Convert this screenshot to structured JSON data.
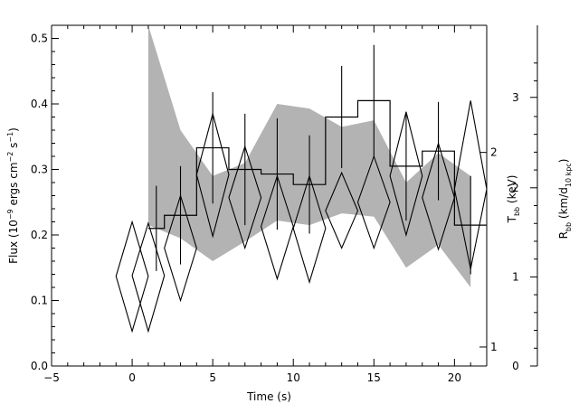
{
  "chart_data": {
    "type": "line",
    "xlabel": "Time (s)",
    "ylabel": "Flux (10^-9 ergs cm^-2 s^-1)",
    "xlim": [
      -5,
      22
    ],
    "ylim": [
      0,
      0.52
    ],
    "xticks": [
      -5,
      0,
      5,
      10,
      15,
      20
    ],
    "yticks": [
      0.0,
      0.1,
      0.2,
      0.3,
      0.4,
      0.5
    ],
    "right_axes": [
      {
        "label": "T_bb (keV)",
        "ticks": [
          {
            "label": "1",
            "flux": 0.029
          },
          {
            "label": "2",
            "flux": 0.326
          }
        ]
      },
      {
        "label": "R_bb (km/d_10 kpc)",
        "ticks": [
          {
            "label": "0",
            "flux": 0.0
          },
          {
            "label": "1",
            "flux": 0.136
          },
          {
            "label": "2",
            "flux": 0.272
          },
          {
            "label": "3",
            "flux": 0.41
          }
        ]
      }
    ],
    "series": [
      {
        "style": "histogram-step",
        "bins": [
          {
            "x0": 1,
            "x1": 2,
            "y": 0.21,
            "err": 0.065
          },
          {
            "x0": 2,
            "x1": 4,
            "y": 0.23,
            "err": 0.075
          },
          {
            "x0": 4,
            "x1": 6,
            "y": 0.333,
            "err": 0.085
          },
          {
            "x0": 6,
            "x1": 8,
            "y": 0.3,
            "err": 0.085
          },
          {
            "x0": 8,
            "x1": 10,
            "y": 0.293,
            "err": 0.085
          },
          {
            "x0": 10,
            "x1": 12,
            "y": 0.277,
            "err": 0.075
          },
          {
            "x0": 12,
            "x1": 14,
            "y": 0.38,
            "err": 0.078
          },
          {
            "x0": 14,
            "x1": 16,
            "y": 0.405,
            "err": 0.085
          },
          {
            "x0": 16,
            "x1": 18,
            "y": 0.305,
            "err": 0.083
          },
          {
            "x0": 18,
            "x1": 20,
            "y": 0.328,
            "err": 0.075
          },
          {
            "x0": 20,
            "x1": 22,
            "y": 0.215,
            "err": 0.075
          }
        ]
      },
      {
        "style": "diamond",
        "axis": "T_bb (keV)",
        "points": [
          {
            "x": 0,
            "y": 0.137,
            "ylo": 0.053,
            "yhi": 0.22
          },
          {
            "x": 1,
            "y": 0.138,
            "ylo": 0.053,
            "yhi": 0.218
          },
          {
            "x": 3,
            "y": 0.18,
            "ylo": 0.1,
            "yhi": 0.26
          },
          {
            "x": 5,
            "y": 0.292,
            "ylo": 0.198,
            "yhi": 0.385
          },
          {
            "x": 7,
            "y": 0.257,
            "ylo": 0.18,
            "yhi": 0.335
          },
          {
            "x": 9,
            "y": 0.213,
            "ylo": 0.133,
            "yhi": 0.29
          },
          {
            "x": 11,
            "y": 0.21,
            "ylo": 0.128,
            "yhi": 0.29
          },
          {
            "x": 13,
            "y": 0.237,
            "ylo": 0.18,
            "yhi": 0.295
          },
          {
            "x": 15,
            "y": 0.25,
            "ylo": 0.18,
            "yhi": 0.32
          },
          {
            "x": 17,
            "y": 0.29,
            "ylo": 0.2,
            "yhi": 0.388
          },
          {
            "x": 19,
            "y": 0.257,
            "ylo": 0.178,
            "yhi": 0.34
          },
          {
            "x": 21,
            "y": 0.27,
            "ylo": 0.148,
            "yhi": 0.405
          }
        ]
      },
      {
        "style": "shaded-band",
        "axis": "R_bb (km/d_10 kpc)",
        "x": [
          1,
          3,
          5,
          7,
          9,
          11,
          13,
          15,
          17,
          19,
          21
        ],
        "upper": [
          0.52,
          0.36,
          0.29,
          0.31,
          0.4,
          0.393,
          0.365,
          0.375,
          0.28,
          0.325,
          0.29
        ],
        "lower": [
          0.215,
          0.195,
          0.16,
          0.19,
          0.222,
          0.215,
          0.233,
          0.228,
          0.15,
          0.185,
          0.12
        ]
      }
    ],
    "grid": false,
    "colors": {
      "band": "#b3b3b3",
      "lines": "#000000"
    }
  }
}
